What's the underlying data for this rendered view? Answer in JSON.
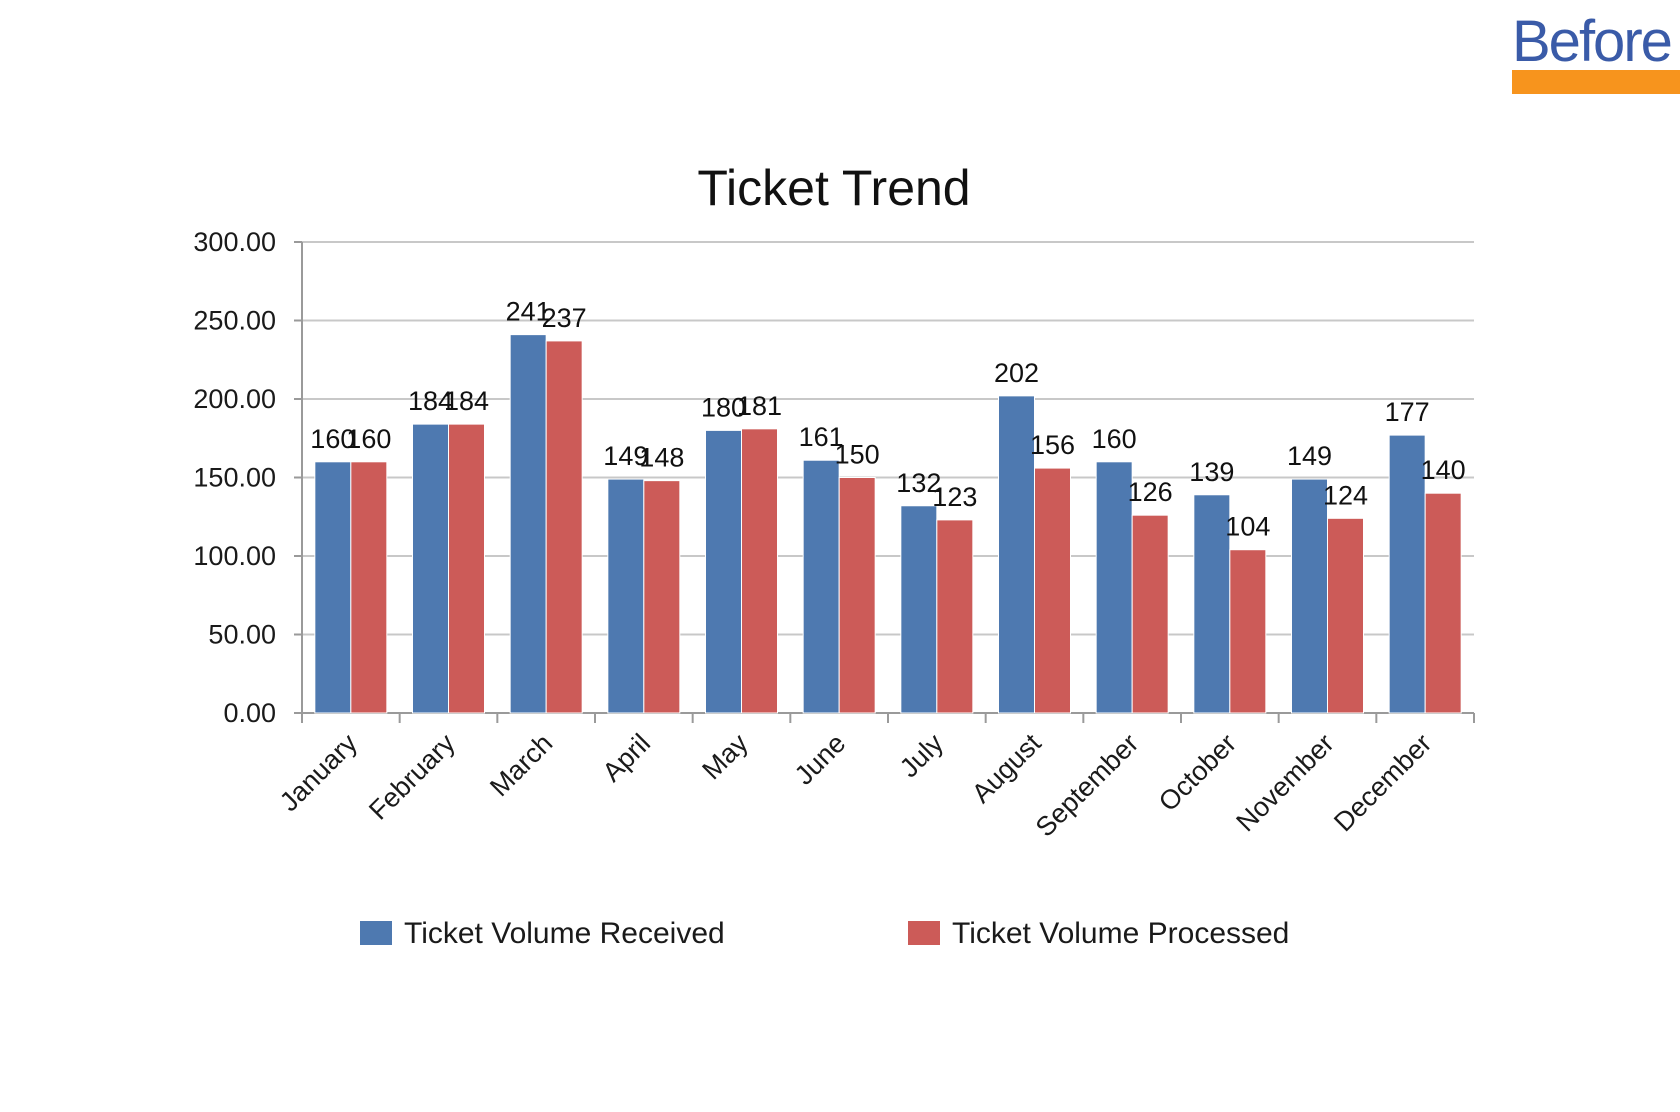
{
  "badge": {
    "text": "Before",
    "text_color": "#3a5ba8",
    "bar_color": "#f7941d"
  },
  "chart_data": {
    "type": "bar",
    "title": "Ticket Trend",
    "xlabel": "",
    "ylabel": "",
    "ylim": [
      0,
      300
    ],
    "yticks": [
      0,
      50,
      100,
      150,
      200,
      250,
      300
    ],
    "ytick_labels": [
      "0.00",
      "50.00",
      "100.00",
      "150.00",
      "200.00",
      "250.00",
      "300.00"
    ],
    "grid": true,
    "legend": "bottom",
    "categories": [
      "January",
      "February",
      "March",
      "April",
      "May",
      "June",
      "July",
      "August",
      "September",
      "October",
      "November",
      "December"
    ],
    "series": [
      {
        "name": "Ticket Volume Received",
        "color": "#4e79b0",
        "values": [
          160,
          184,
          241,
          149,
          180,
          161,
          132,
          202,
          160,
          139,
          149,
          177
        ]
      },
      {
        "name": "Ticket Volume Processed",
        "color": "#cc5b58",
        "values": [
          160,
          184,
          237,
          148,
          181,
          150,
          123,
          156,
          126,
          104,
          124,
          140
        ]
      }
    ]
  }
}
